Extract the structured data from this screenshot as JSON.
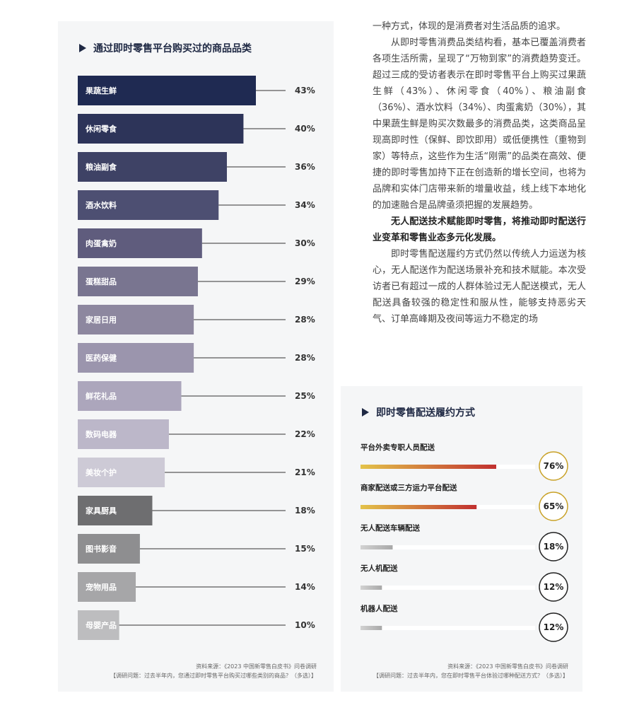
{
  "article": {
    "p1": "一种方式，体现的是消费者对生活品质的追求。",
    "p2": "从即时零售消费品类结构看，基本已覆盖消费者各项生活所需，呈现了“万物到家”的消费趋势变迁。超过三成的受访者表示在即时零售平台上购买过果蔬生鲜（43%）、休闲零食（40%）、粮油副食（36%）、酒水饮料（34%）、肉蛋禽奶（30%），其中果蔬生鲜是购买次数最多的消费品类，这类商品呈现高即时性（保鲜、即饮即用）或低便携性（重物到家）等特点，这些作为生活“刚需”的品类在高效、便捷的即时零售加持下正在创造新的增长空间，也将为品牌和实体门店带来新的增量收益，线上线下本地化的加速融合是品牌亟须把握的发展趋势。",
    "p3": "无人配送技术赋能即时零售，将推动即时配送行业变革和零售业态多元化发展。",
    "p4": "即时零售配送履约方式仍然以传统人力运送为核心，无人配送作为配送场景补充和技术赋能。本次受访者已有超过一成的人群体验过无人配送模式，无人配送具备较强的稳定性和服从性，能够支持恶劣天气、订单高峰期及夜间等运力不稳定的场"
  },
  "chart_data": [
    {
      "type": "bar",
      "orientation": "horizontal",
      "title": "通过即时零售平台购买过的商品品类",
      "categories": [
        "果蔬生鲜",
        "休闲零食",
        "粮油副食",
        "酒水饮料",
        "肉蛋禽奶",
        "蛋糕甜品",
        "家居日用",
        "医药保健",
        "鲜花礼品",
        "数码电器",
        "美妆个护",
        "家具厨具",
        "图书影音",
        "宠物用品",
        "母婴产品"
      ],
      "values": [
        43,
        40,
        36,
        34,
        30,
        29,
        28,
        28,
        25,
        22,
        21,
        18,
        15,
        14,
        10
      ],
      "value_labels": [
        "43%",
        "40%",
        "36%",
        "34%",
        "30%",
        "29%",
        "28%",
        "28%",
        "25%",
        "22%",
        "21%",
        "18%",
        "15%",
        "14%",
        "10%"
      ],
      "unit": "%",
      "colors": [
        "#1f2a52",
        "#2d3459",
        "#3e4265",
        "#4d4f72",
        "#5f5c7d",
        "#797590",
        "#8d879f",
        "#9b95ad",
        "#aca6bc",
        "#bcb7c9",
        "#cdcad6",
        "#6e6e70",
        "#8e8e90",
        "#a6a6a8",
        "#bdbdbf"
      ],
      "source": "资料来源：《2023 中国新零售白皮书》问卷调研",
      "note": "【调研问题：过去半年内，您通过即时零售平台购买过哪些类别的商品？（多选）】"
    },
    {
      "type": "bar",
      "orientation": "horizontal",
      "title": "即时零售配送履约方式",
      "categories": [
        "平台外卖专职人员配送",
        "商家配送或三方运力平台配送",
        "无人配送车辆配送",
        "无人机配送",
        "机器人配送"
      ],
      "values": [
        76,
        65,
        18,
        12,
        12
      ],
      "value_labels": [
        "76%",
        "65%",
        "18%",
        "12%",
        "12%"
      ],
      "unit": "%",
      "source": "资料来源：《2023 中国新零售白皮书》问卷调研",
      "note": "【调研问题：过去半年内，您在即时零售平台体验过哪种配送方式？（多选）】"
    }
  ]
}
